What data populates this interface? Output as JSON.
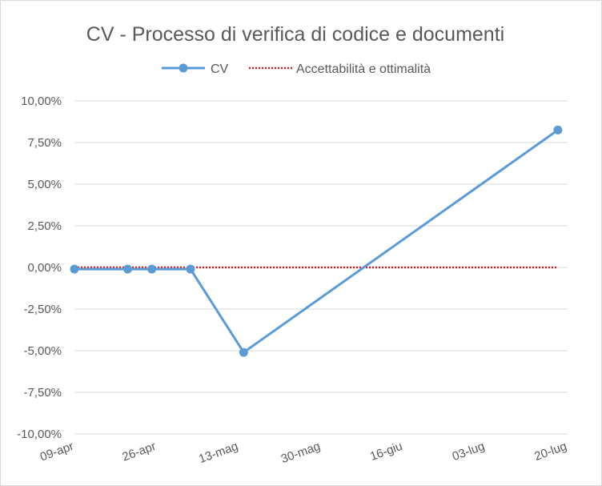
{
  "chart_data": {
    "type": "line",
    "title": "CV - Processo di verifica di codice e documenti",
    "xlabel": "",
    "ylabel": "",
    "x_ticks": [
      "09-apr",
      "26-apr",
      "13-mag",
      "30-mag",
      "16-giu",
      "03-lug",
      "20-lug"
    ],
    "x_range": [
      "09-apr",
      "20-lug"
    ],
    "y_ticks": [
      "10,00%",
      "7,50%",
      "5,00%",
      "2,50%",
      "0,00%",
      "-2,50%",
      "-5,00%",
      "-7,50%",
      "-10,00%"
    ],
    "ylim": [
      -10,
      10
    ],
    "grid": true,
    "legend_position": "top",
    "series": [
      {
        "name": "CV",
        "color": "#5b9bd5",
        "style": "line-markers",
        "points": [
          {
            "x": "09-apr",
            "y": -0.1
          },
          {
            "x": "20-apr",
            "y": -0.1
          },
          {
            "x": "25-apr",
            "y": -0.1
          },
          {
            "x": "03-mag",
            "y": -0.1
          },
          {
            "x": "14-mag",
            "y": -5.1
          },
          {
            "x": "18-lug",
            "y": 8.25
          }
        ]
      },
      {
        "name": "Accettabilità e ottimalità",
        "color": "#e31a1c",
        "style": "dotted",
        "points": [
          {
            "x": "09-apr",
            "y": 0
          },
          {
            "x": "18-lug",
            "y": 0
          }
        ]
      }
    ]
  }
}
